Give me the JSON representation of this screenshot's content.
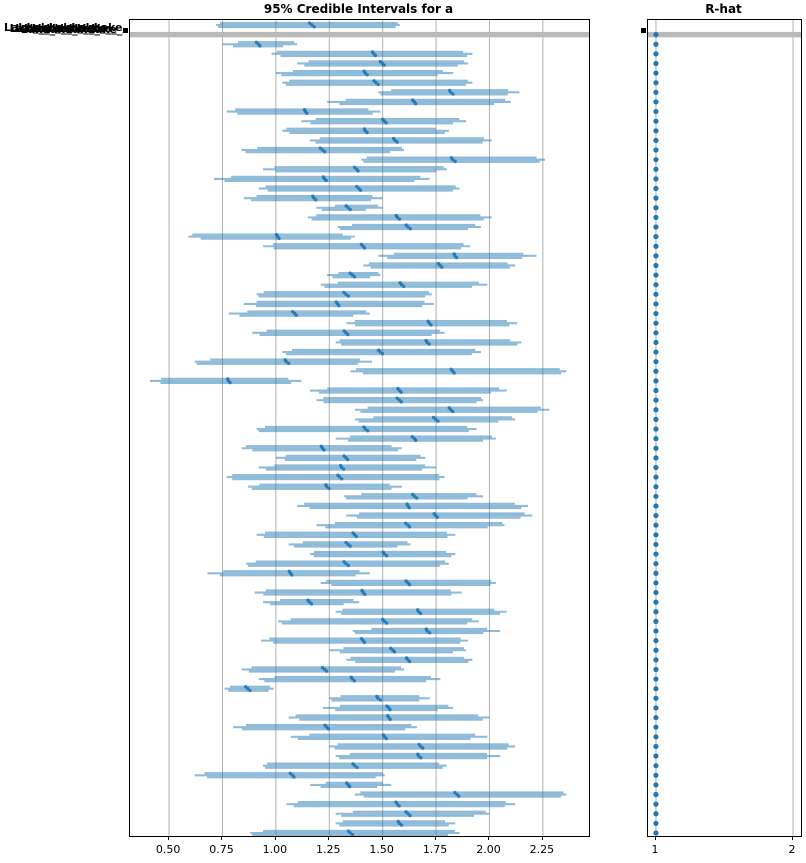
{
  "figure": {
    "background": "#ffffff"
  },
  "panels": {
    "left": {
      "title": "95% Credible Intervals for a"
    },
    "right": {
      "title": "R-hat"
    }
  },
  "y_axis": {
    "legible_label_fragment": "Lake",
    "labels_overlapping": true,
    "overlapping_label_count": 85
  },
  "chart_data": [
    {
      "type": "forest",
      "title": "95% Credible Intervals for a",
      "xlabel": "",
      "ylabel": "85 overlapping group labels beginning with 'Lake'",
      "xlim": [
        0.317,
        2.466
      ],
      "xticks": [
        0.5,
        0.75,
        1.0,
        1.25,
        1.5,
        1.75,
        2.0,
        2.25
      ],
      "xtick_labels": [
        "0.50",
        "0.75",
        "1.00",
        "1.25",
        "1.50",
        "1.75",
        "2.00",
        "2.25"
      ],
      "grid": "vertical",
      "grid_color": "#b0b0b0",
      "interval_color": "#1f77b4",
      "interval_opacity": 0.5,
      "mean_marker_color": "#1f77b4",
      "highlight_row": {
        "index": 1,
        "style": "full-width-gray-band",
        "color": "#b9b9b9"
      },
      "rows": [
        [
          0.72,
          1.17,
          1.58
        ],
        "gray",
        [
          0.75,
          0.92,
          1.1
        ],
        [
          0.98,
          1.46,
          1.92
        ],
        [
          1.1,
          1.5,
          1.9
        ],
        [
          1.0,
          1.42,
          1.83
        ],
        [
          1.03,
          1.47,
          1.92
        ],
        [
          1.48,
          1.82,
          2.14
        ],
        [
          1.24,
          1.65,
          2.1
        ],
        [
          0.77,
          1.14,
          1.49
        ],
        [
          1.12,
          1.51,
          1.89
        ],
        [
          1.03,
          1.42,
          1.81
        ],
        [
          1.16,
          1.56,
          2.01
        ],
        [
          0.84,
          1.22,
          1.6
        ],
        [
          1.4,
          1.83,
          2.26
        ],
        [
          0.94,
          1.38,
          1.8
        ],
        [
          0.71,
          1.23,
          1.72
        ],
        [
          0.92,
          1.39,
          1.86
        ],
        [
          0.85,
          1.18,
          1.5
        ],
        [
          1.19,
          1.34,
          1.5
        ],
        [
          1.15,
          1.57,
          2.01
        ],
        [
          1.29,
          1.62,
          1.96
        ],
        [
          0.59,
          1.01,
          1.37
        ],
        [
          0.94,
          1.41,
          1.91
        ],
        [
          1.48,
          1.84,
          2.22
        ],
        [
          1.41,
          1.77,
          2.12
        ],
        [
          1.24,
          1.36,
          1.49
        ],
        [
          1.21,
          1.59,
          1.99
        ],
        [
          0.91,
          1.33,
          1.73
        ],
        [
          0.85,
          1.29,
          1.74
        ],
        [
          0.78,
          1.09,
          1.44
        ],
        [
          1.33,
          1.72,
          2.13
        ],
        [
          0.89,
          1.33,
          1.79
        ],
        [
          1.28,
          1.71,
          2.15
        ],
        [
          1.03,
          1.49,
          1.96
        ],
        [
          0.62,
          1.05,
          1.45
        ],
        [
          1.35,
          1.83,
          2.36
        ],
        [
          0.41,
          0.78,
          1.12
        ],
        [
          1.16,
          1.58,
          2.08
        ],
        [
          1.19,
          1.58,
          1.97
        ],
        [
          1.37,
          1.82,
          2.28
        ],
        [
          1.37,
          1.75,
          2.12
        ],
        [
          0.91,
          1.42,
          1.94
        ],
        [
          1.28,
          1.65,
          2.03
        ],
        [
          0.84,
          1.22,
          1.59
        ],
        [
          1.0,
          1.33,
          1.7
        ],
        [
          0.92,
          1.31,
          1.75
        ],
        [
          0.77,
          1.3,
          1.79
        ],
        [
          0.87,
          1.24,
          1.59
        ],
        [
          1.32,
          1.65,
          1.97
        ],
        [
          1.1,
          1.62,
          2.18
        ],
        [
          1.33,
          1.75,
          2.2
        ],
        [
          1.19,
          1.62,
          2.07
        ],
        [
          0.91,
          1.37,
          1.84
        ],
        [
          1.06,
          1.34,
          1.63
        ],
        [
          1.16,
          1.51,
          1.84
        ],
        [
          0.86,
          1.33,
          1.81
        ],
        [
          0.68,
          1.07,
          1.44
        ],
        [
          1.21,
          1.62,
          2.03
        ],
        [
          0.9,
          1.41,
          1.87
        ],
        [
          0.94,
          1.16,
          1.39
        ],
        [
          1.28,
          1.67,
          2.08
        ],
        [
          1.01,
          1.51,
          1.95
        ],
        [
          1.36,
          1.71,
          2.05
        ],
        [
          0.93,
          1.41,
          1.9
        ],
        [
          1.25,
          1.55,
          1.89
        ],
        [
          1.33,
          1.62,
          1.92
        ],
        [
          0.84,
          1.23,
          1.6
        ],
        [
          0.92,
          1.36,
          1.77
        ],
        [
          0.76,
          0.87,
          0.99
        ],
        [
          1.25,
          1.48,
          1.72
        ],
        [
          1.22,
          1.53,
          1.83
        ],
        [
          1.06,
          1.53,
          2.0
        ],
        [
          0.8,
          1.24,
          1.66
        ],
        [
          1.07,
          1.51,
          1.99
        ],
        [
          1.25,
          1.68,
          2.12
        ],
        [
          1.28,
          1.67,
          2.05
        ],
        [
          0.94,
          1.37,
          1.8
        ],
        [
          0.62,
          1.08,
          1.51
        ],
        [
          1.16,
          1.34,
          1.54
        ],
        [
          1.37,
          1.85,
          2.36
        ],
        [
          1.05,
          1.57,
          2.12
        ],
        [
          1.28,
          1.62,
          2.0
        ],
        [
          1.28,
          1.58,
          1.84
        ],
        [
          0.88,
          1.35,
          1.86
        ]
      ]
    },
    {
      "type": "scatter",
      "title": "R-hat",
      "xlim": [
        0.942,
        2.058
      ],
      "xticks": [
        1,
        2
      ],
      "xtick_labels": [
        "1",
        "2"
      ],
      "grid": "vertical",
      "grid_color": "#b0b0b0",
      "dot_color": "#1f77b4",
      "rhat_value_all_rows": 1.0,
      "n_points": 84,
      "highlight_row": {
        "index": 1,
        "style": "full-width-gray-band",
        "color": "#b9b9b9"
      }
    }
  ]
}
